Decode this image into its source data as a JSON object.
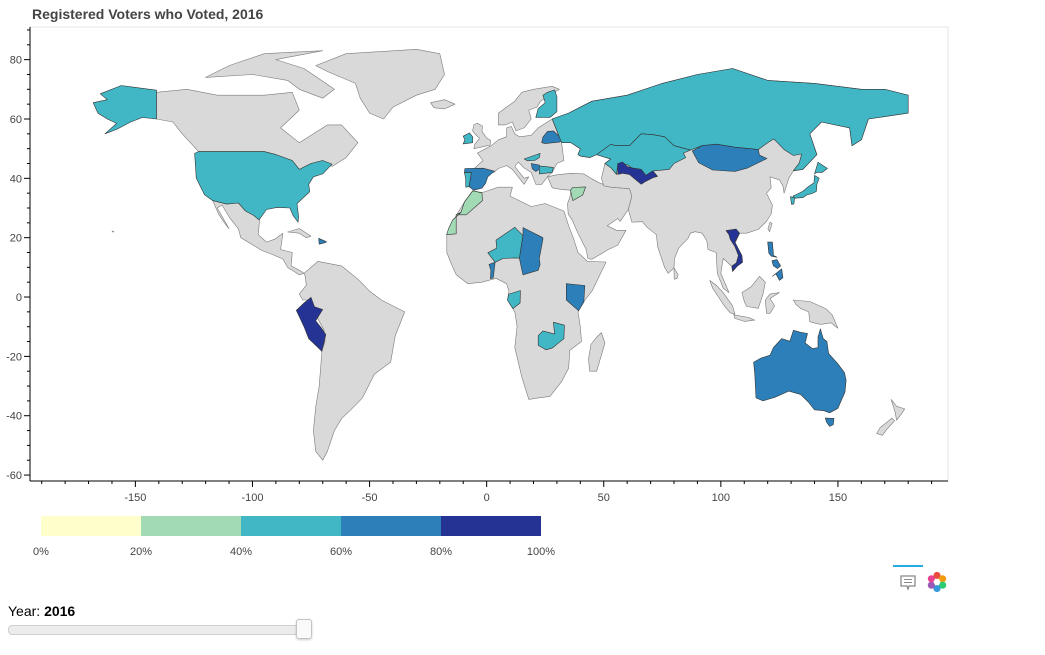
{
  "chart_data": {
    "type": "choropleth-map",
    "title": "Registered Voters who Voted, 2016",
    "xlim": [
      -195,
      197
    ],
    "ylim": [
      -62,
      91
    ],
    "x_ticks": [
      -150,
      -100,
      -50,
      0,
      50,
      100,
      150
    ],
    "y_ticks": [
      80,
      60,
      40,
      20,
      0,
      -20,
      -40,
      -60
    ],
    "no_data_color": "#d9d9d9",
    "color_bar": {
      "bins": [
        {
          "from": 0,
          "to": 20,
          "color": "#ffffcc"
        },
        {
          "from": 20,
          "to": 40,
          "color": "#a1dab4"
        },
        {
          "from": 40,
          "to": 60,
          "color": "#41b6c4"
        },
        {
          "from": 60,
          "to": 80,
          "color": "#2c7fb8"
        },
        {
          "from": 80,
          "to": 100,
          "color": "#253494"
        }
      ],
      "tick_labels": [
        "0%",
        "20%",
        "40%",
        "60%",
        "80%",
        "100%"
      ]
    },
    "countries": [
      {
        "name": "United States",
        "bin": 2
      },
      {
        "name": "Alaska",
        "bin": 2
      },
      {
        "name": "Peru",
        "bin": 4
      },
      {
        "name": "Russia",
        "bin": 2
      },
      {
        "name": "Mongolia",
        "bin": 3
      },
      {
        "name": "Uzbekistan",
        "bin": 4
      },
      {
        "name": "Vietnam",
        "bin": 4
      },
      {
        "name": "Philippines",
        "bin": 3
      },
      {
        "name": "Japan",
        "bin": 2
      },
      {
        "name": "Australia",
        "bin": 3
      },
      {
        "name": "Spain",
        "bin": 3
      },
      {
        "name": "Portugal",
        "bin": 2
      },
      {
        "name": "Morocco",
        "bin": 1
      },
      {
        "name": "Chad",
        "bin": 3
      },
      {
        "name": "Niger",
        "bin": 2
      },
      {
        "name": "Kenya",
        "bin": 3
      },
      {
        "name": "Zambia",
        "bin": 2
      },
      {
        "name": "Ireland",
        "bin": 2
      },
      {
        "name": "Dominican Republic",
        "bin": 3
      },
      {
        "name": "Finland",
        "bin": 2
      },
      {
        "name": "Belarus",
        "bin": 3
      },
      {
        "name": "Syria",
        "bin": 1
      }
    ]
  },
  "toolbar": {
    "hover_icon": "hover-tooltip-icon",
    "logo_icon": "bokeh-logo-icon"
  },
  "slider": {
    "label": "Year: ",
    "value": "2016",
    "start": 2000,
    "end": 2016,
    "current": 2016
  }
}
